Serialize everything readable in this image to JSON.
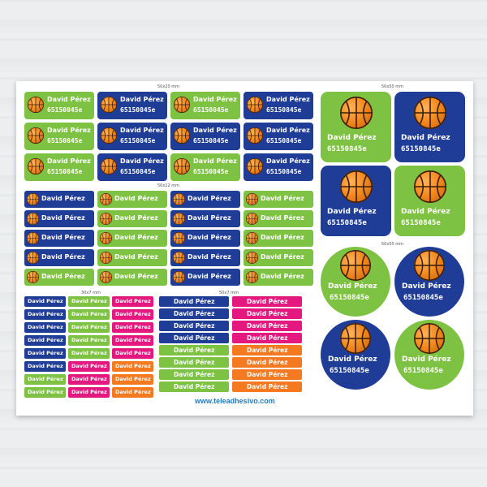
{
  "sticker": {
    "name": "David Pérez",
    "code": "65150845e",
    "ball_icon": "basketball-icon"
  },
  "dimensions": {
    "d50x20": "50x20 mm",
    "d50x12": "50x12 mm",
    "d50x50_square": "50x50 mm",
    "d50x50_round": "50x50 mm",
    "d30x7": "30x7 mm",
    "d50x7": "50x7 mm"
  },
  "website": "www.teleadhesivo.com",
  "colors": {
    "green": "#7dc242",
    "blue": "#1f3d97",
    "pink": "#e5187f",
    "orange": "#f47920",
    "link": "#1f7ac0"
  }
}
